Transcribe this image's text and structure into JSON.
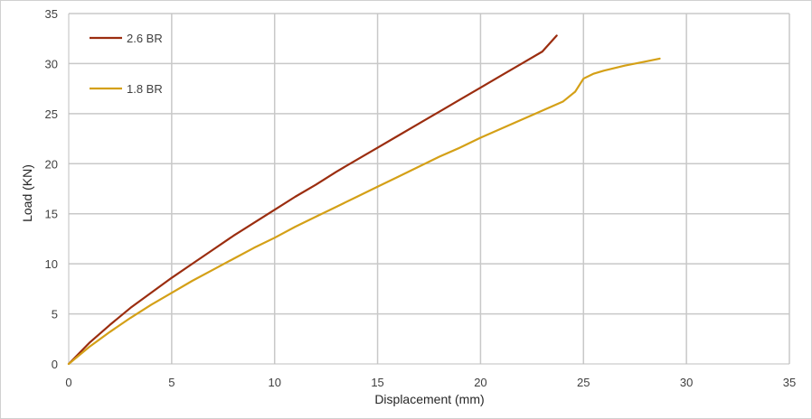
{
  "chart_data": {
    "type": "line",
    "title": "",
    "xlabel": "Displacement (mm)",
    "ylabel": "Load (KN)",
    "xlim": [
      0,
      35
    ],
    "ylim": [
      0,
      35
    ],
    "xticks": [
      0,
      5,
      10,
      15,
      20,
      25,
      30,
      35
    ],
    "yticks": [
      0,
      5,
      10,
      15,
      20,
      25,
      30,
      35
    ],
    "grid": true,
    "legend_position": "top-left",
    "series": [
      {
        "name": "2.6 BR",
        "color": "#9B2D0F",
        "x": [
          0,
          1,
          2,
          3,
          4,
          5,
          6,
          7,
          8,
          9,
          10,
          11,
          12,
          13,
          14,
          15,
          16,
          17,
          18,
          19,
          20,
          21,
          22,
          23,
          23.7
        ],
        "y": [
          0,
          2.1,
          3.9,
          5.6,
          7.1,
          8.6,
          10.0,
          11.4,
          12.8,
          14.1,
          15.4,
          16.7,
          17.9,
          19.2,
          20.4,
          21.6,
          22.8,
          24.0,
          25.2,
          26.4,
          27.6,
          28.8,
          30.0,
          31.2,
          32.8
        ]
      },
      {
        "name": "1.8 BR",
        "color": "#D4A017",
        "x": [
          0,
          1,
          2,
          3,
          4,
          5,
          6,
          7,
          8,
          9,
          10,
          11,
          12,
          13,
          14,
          15,
          16,
          17,
          18,
          19,
          20,
          21,
          22,
          23,
          24,
          24.6,
          25,
          25.5,
          26,
          27,
          28,
          28.7
        ],
        "y": [
          0,
          1.7,
          3.2,
          4.6,
          5.9,
          7.1,
          8.3,
          9.4,
          10.5,
          11.6,
          12.6,
          13.7,
          14.7,
          15.7,
          16.7,
          17.7,
          18.7,
          19.7,
          20.7,
          21.6,
          22.6,
          23.5,
          24.4,
          25.3,
          26.2,
          27.2,
          28.5,
          29.0,
          29.3,
          29.8,
          30.2,
          30.5
        ]
      }
    ]
  }
}
